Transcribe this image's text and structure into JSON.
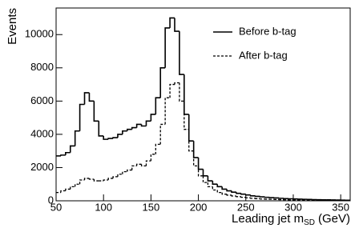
{
  "chart_data": {
    "type": "step-histogram",
    "xlabel": {
      "main": "Leading jet m",
      "sub": "SD",
      "unit": "(GeV)"
    },
    "ylabel": "Events",
    "bins": [
      50,
      55,
      60,
      65,
      70,
      75,
      80,
      85,
      90,
      95,
      100,
      105,
      110,
      115,
      120,
      125,
      130,
      135,
      140,
      145,
      150,
      155,
      160,
      165,
      170,
      175,
      180,
      185,
      190,
      195,
      200,
      205,
      210,
      215,
      220,
      225,
      230,
      235,
      240,
      245,
      250,
      255,
      260,
      265,
      270,
      275,
      280,
      285,
      290,
      295,
      300,
      305,
      310,
      315,
      320,
      325,
      330,
      335,
      340,
      345,
      350,
      355,
      360
    ],
    "series": [
      {
        "name": "Before b-tag",
        "color": "#000000",
        "dash": false,
        "values": [
          2700,
          2750,
          2900,
          3300,
          4200,
          5800,
          6500,
          6000,
          4800,
          3900,
          3700,
          3750,
          3800,
          4000,
          4200,
          4300,
          4400,
          4600,
          4500,
          4800,
          5200,
          6200,
          8000,
          10400,
          11000,
          10200,
          7600,
          5200,
          3600,
          2600,
          1900,
          1500,
          1200,
          1000,
          850,
          700,
          600,
          520,
          450,
          400,
          350,
          300,
          270,
          240,
          210,
          190,
          170,
          150,
          130,
          120,
          110,
          100,
          90,
          80,
          70,
          65,
          60,
          55,
          50,
          45,
          40,
          35
        ]
      },
      {
        "name": "After b-tag",
        "color": "#000000",
        "dash": true,
        "values": [
          500,
          600,
          700,
          850,
          1000,
          1250,
          1350,
          1300,
          1200,
          1200,
          1250,
          1350,
          1450,
          1600,
          1750,
          1850,
          2100,
          2200,
          2100,
          2400,
          2800,
          3400,
          4600,
          6200,
          7000,
          7100,
          6000,
          4300,
          3000,
          2100,
          1500,
          1100,
          850,
          650,
          500,
          400,
          340,
          290,
          250,
          210,
          180,
          150,
          130,
          110,
          100,
          90,
          80,
          70,
          60,
          55,
          50,
          45,
          40,
          35,
          30,
          28,
          25,
          22,
          20,
          18,
          15,
          12
        ]
      }
    ],
    "xlim": [
      50,
      360
    ],
    "ylim": [
      0,
      11600
    ],
    "xticks": [
      50,
      100,
      150,
      200,
      250,
      300,
      350
    ],
    "yticks": [
      0,
      2000,
      4000,
      6000,
      8000,
      10000
    ],
    "legend": "upper-right"
  }
}
